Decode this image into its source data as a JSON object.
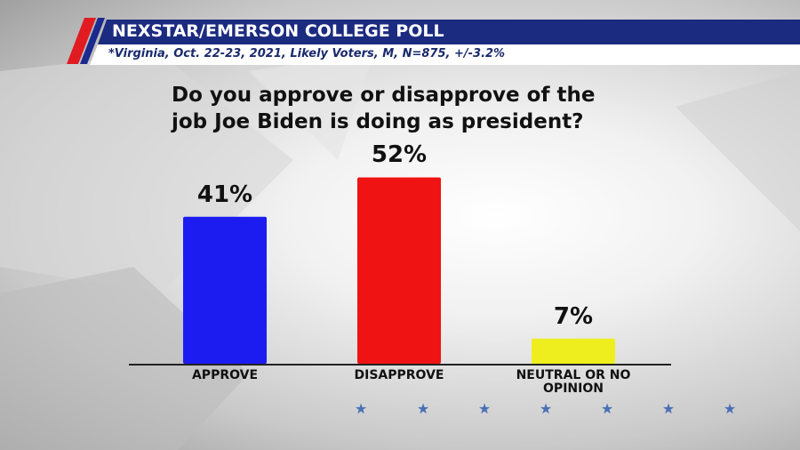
{
  "chart_data": {
    "type": "bar",
    "title": "NEXSTAR/EMERSON COLLEGE POLL",
    "subtitle": "*Virginia, Oct. 22-23, 2021, Likely Voters, M, N=875, +/-3.2%",
    "question": "Do you approve or disapprove of the job Joe Biden is doing as president?",
    "categories": [
      "APPROVE",
      "DISAPPROVE",
      "NEUTRAL OR NO OPINION"
    ],
    "values": [
      41,
      52,
      7
    ],
    "value_labels": [
      "41%",
      "52%",
      "7%"
    ],
    "colors": [
      "#1c1cf0",
      "#ef1313",
      "#eeee1e"
    ]
  }
}
